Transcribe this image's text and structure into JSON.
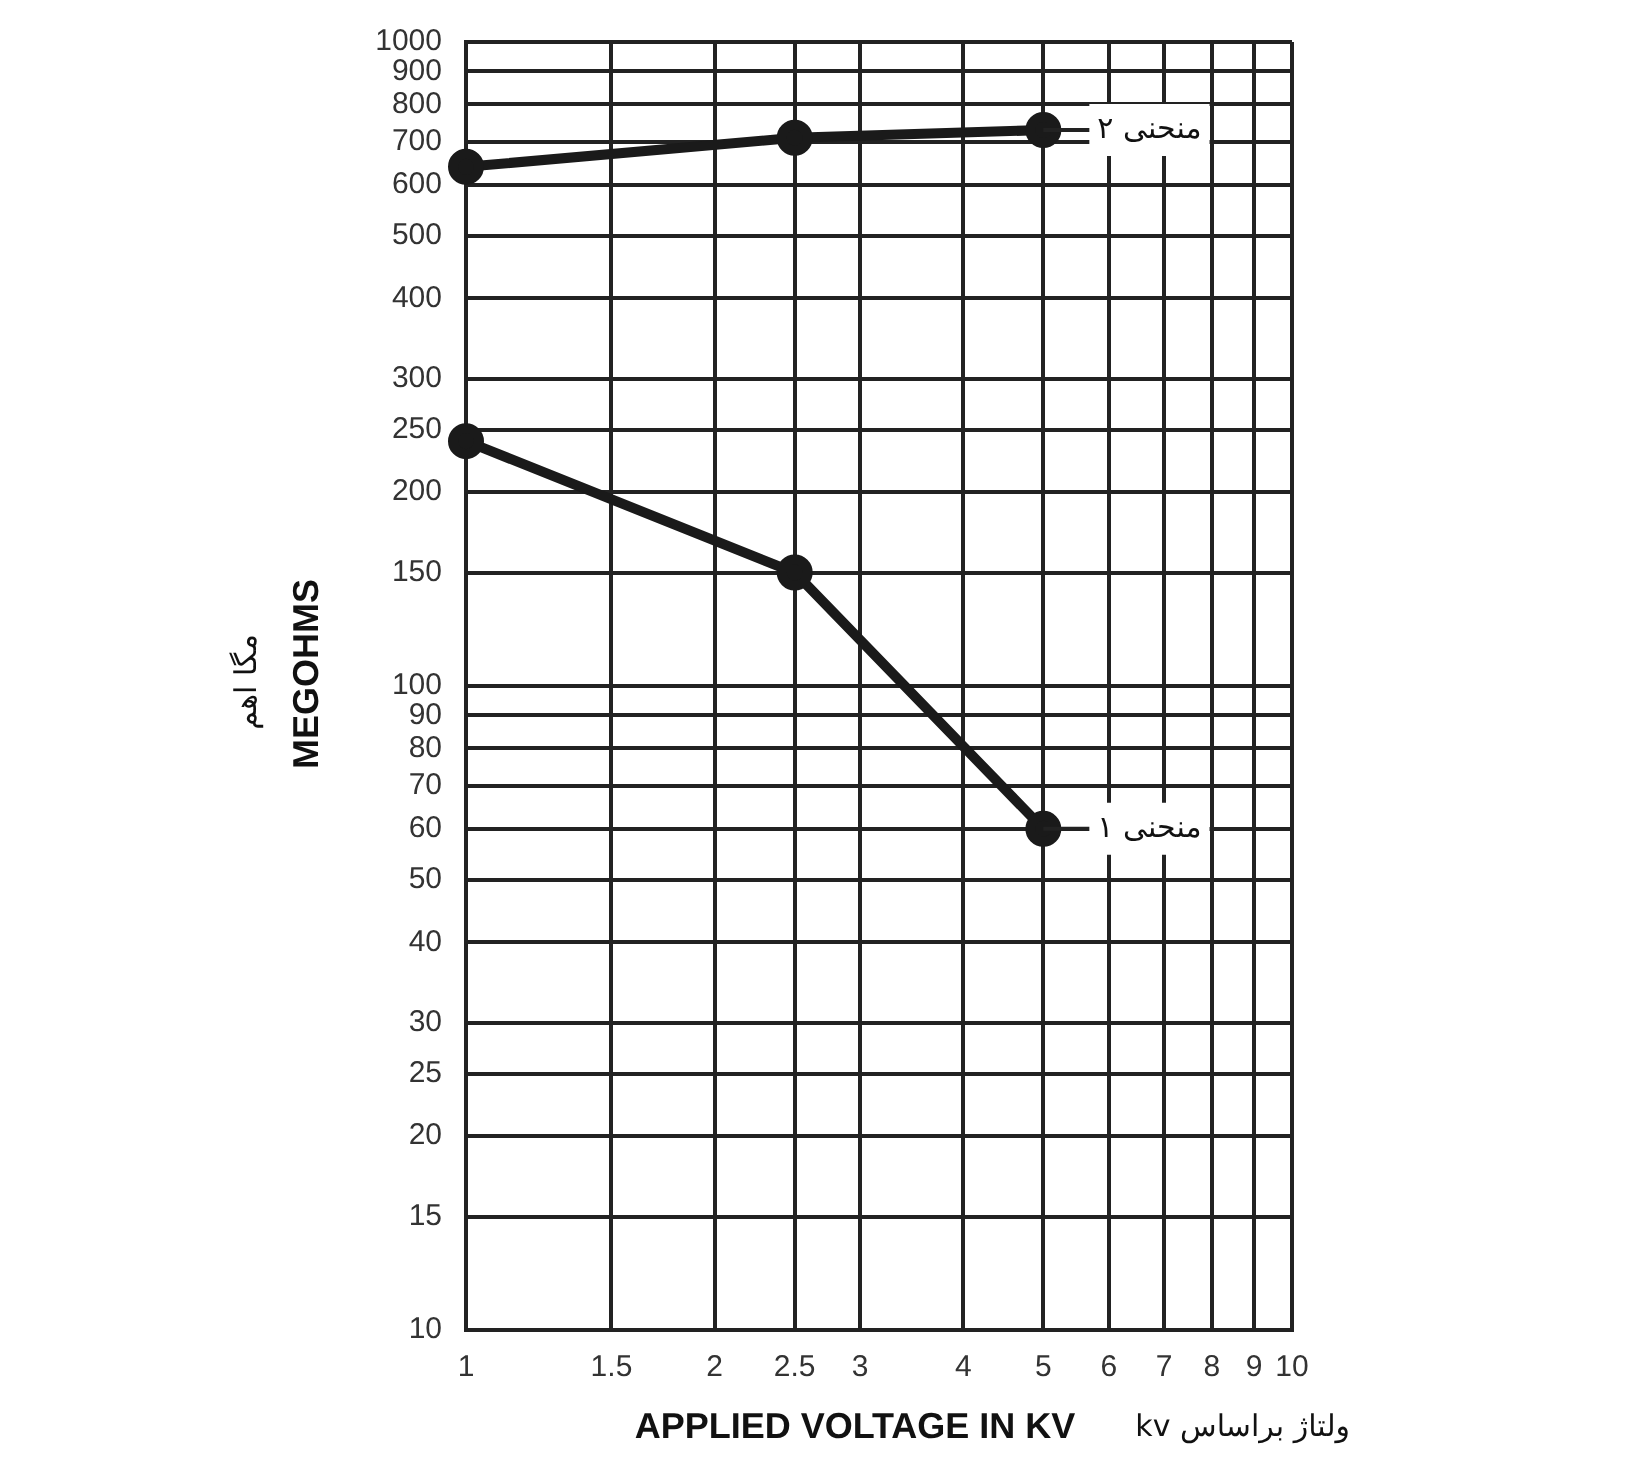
{
  "chart_data": {
    "type": "line",
    "xlabel": "APPLIED VOLTAGE IN KV",
    "ylabel": "MEGOHMS",
    "annotations": [
      "ولتاژ براساس kv",
      "مگا اهم"
    ],
    "x": [
      1,
      2.5,
      5
    ],
    "series": [
      {
        "name": "منحنی ۱",
        "color": "#1a1a1a",
        "values": [
          240,
          150,
          60
        ]
      },
      {
        "name": "منحنی ۲",
        "color": "#1a1a1a",
        "values": [
          640,
          710,
          730
        ]
      }
    ],
    "log": "xy",
    "xlim": [
      1,
      10
    ],
    "ylim": [
      10,
      1000
    ],
    "xticks": [
      1,
      1.5,
      2,
      2.5,
      3,
      4,
      5,
      6,
      7,
      8,
      9,
      10
    ],
    "yticks": [
      10,
      15,
      20,
      25,
      30,
      40,
      50,
      60,
      70,
      80,
      90,
      100,
      150,
      200,
      250,
      300,
      400,
      500,
      600,
      700,
      800,
      900,
      1000
    ],
    "grid": true,
    "marker": "circle",
    "line_style": "solid",
    "legend": "right"
  }
}
